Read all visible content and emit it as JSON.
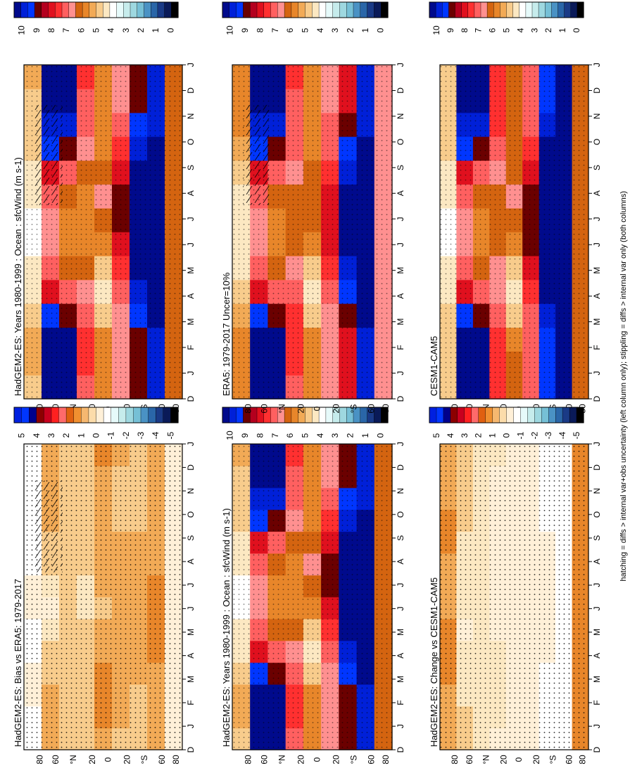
{
  "figure": {
    "footnote": "hatching = diffs > internal var+obs uncertainty (left column only); stippling = diffs > internal var only (both columns)"
  },
  "month_labels": [
    "D",
    "J",
    "F",
    "M",
    "A",
    "M",
    "J",
    "J",
    "A",
    "S",
    "O",
    "N",
    "D",
    "J"
  ],
  "lat_labels": [
    "80",
    "60",
    "°N",
    "20",
    "0",
    "20",
    "°S",
    "60",
    "80"
  ],
  "colorbars": {
    "absolute": {
      "ticks": [
        "10",
        "9",
        "8",
        "7",
        "6",
        "5",
        "4",
        "3",
        "2",
        "1",
        "0"
      ],
      "colors": [
        "#000a8c",
        "#0020d8",
        "#0036ff",
        "#6b0000",
        "#b4001e",
        "#e0101e",
        "#ff3030",
        "#ff6060",
        "#ff9090",
        "#d46410",
        "#e8862a",
        "#f2aa56",
        "#f8cc8c",
        "#fce8c2",
        "#ffffff",
        "#e6fafa",
        "#c6ecec",
        "#9ed8e0",
        "#76c0d6",
        "#4a92c4",
        "#2a66a8",
        "#1a3a86",
        "#0a1a58",
        "#000000"
      ]
    },
    "difference": {
      "ticks": [
        "5",
        "4",
        "3",
        "2",
        "1",
        "0",
        "-1",
        "-2",
        "-3",
        "-4",
        "-5"
      ],
      "colors": [
        "#0020e0",
        "#0036ff",
        "#00008c",
        "#8c0000",
        "#c8001e",
        "#ff2020",
        "#ff6a6a",
        "#e06010",
        "#f09030",
        "#f6b870",
        "#fcdcaa",
        "#fff0d8",
        "#ffffff",
        "#e6fafa",
        "#c6ecec",
        "#9ed8e0",
        "#76c0d6",
        "#4a92c4",
        "#2a66a8",
        "#1a3a86",
        "#0a1a58",
        "#000000"
      ]
    }
  },
  "panels": [
    {
      "title": "HadGEM2-ES: Years 1980-1999 : Ocean : sfcWind (m s-1)",
      "colorbar": "absolute",
      "hatched": true
    },
    {
      "title": "HadGEM2-ES: Years 1980-1999 : Ocean : sfcWind (m s-1)",
      "colorbar": "absolute",
      "hatched": false
    },
    {
      "title": "ERA5: 1979-2017 Uncer=10%",
      "colorbar": "absolute",
      "hatched": true
    },
    {
      "title": "CESM1-CAM5",
      "colorbar": "absolute",
      "hatched": false
    },
    {
      "title": "HadGEM2-ES: Bias vs ERA5: 1979-2017",
      "colorbar": "difference",
      "hatched": true
    },
    {
      "title": "HadGEM2-ES: Change vs CESM1-CAM5",
      "colorbar": "difference",
      "hatched": false
    }
  ],
  "chart_data": [
    {
      "type": "heatmap",
      "title": "HadGEM2-ES: Years 1980-1999 : Ocean : sfcWind (m s-1)",
      "x": [
        "D",
        "J",
        "F",
        "M",
        "A",
        "M",
        "J",
        "J",
        "A",
        "S",
        "O",
        "N",
        "D",
        "J"
      ],
      "y": [
        "80N",
        "60N",
        "40N",
        "20N",
        "0",
        "20S",
        "40S",
        "60S",
        "80S"
      ],
      "values": [
        [
          5.0,
          5.2,
          5.2,
          5.0,
          4.5,
          4.2,
          4.0,
          4.0,
          4.2,
          4.5,
          4.8,
          5.0,
          5.0,
          5.2
        ],
        [
          10.0,
          10.0,
          10.0,
          9.0,
          8.0,
          7.0,
          6.5,
          6.5,
          7.0,
          8.0,
          9.0,
          9.5,
          10.0,
          10.0
        ],
        [
          10.0,
          10.0,
          10.0,
          8.5,
          7.0,
          6.0,
          5.5,
          5.5,
          6.0,
          7.0,
          8.5,
          9.5,
          10.0,
          10.0
        ],
        [
          7.0,
          7.5,
          7.5,
          7.0,
          6.5,
          6.0,
          5.5,
          5.5,
          5.5,
          6.0,
          6.5,
          7.0,
          7.0,
          7.5
        ],
        [
          5.5,
          5.5,
          5.5,
          5.0,
          4.5,
          5.0,
          5.5,
          6.0,
          6.5,
          6.0,
          5.5,
          5.5,
          5.5,
          5.5
        ],
        [
          6.5,
          6.5,
          6.5,
          6.5,
          7.0,
          7.5,
          8.0,
          8.5,
          8.5,
          8.0,
          7.5,
          7.0,
          6.5,
          6.5
        ],
        [
          8.5,
          8.5,
          8.5,
          9.0,
          9.5,
          10.0,
          10.0,
          10.0,
          10.0,
          10.0,
          9.5,
          9.0,
          8.5,
          8.5
        ],
        [
          9.5,
          9.5,
          9.5,
          10.0,
          10.0,
          10.0,
          10.0,
          10.0,
          10.0,
          10.0,
          10.0,
          9.5,
          9.5,
          9.5
        ],
        [
          6.0,
          6.0,
          6.0,
          6.0,
          6.0,
          6.0,
          6.0,
          6.0,
          6.0,
          6.0,
          6.0,
          6.0,
          6.0,
          6.0
        ]
      ]
    },
    {
      "type": "heatmap",
      "title": "HadGEM2-ES: Years 1980-1999 : Ocean : sfcWind (m s-1)",
      "x": [
        "D",
        "J",
        "F",
        "M",
        "A",
        "M",
        "J",
        "J",
        "A",
        "S",
        "O",
        "N",
        "D",
        "J"
      ],
      "y": [
        "80N",
        "60N",
        "40N",
        "20N",
        "0",
        "20S",
        "40S",
        "60S",
        "80S"
      ],
      "values": [
        [
          5.0,
          5.2,
          5.2,
          5.0,
          4.5,
          4.2,
          4.0,
          4.0,
          4.2,
          4.5,
          4.8,
          5.0,
          5.0,
          5.2
        ],
        [
          10.0,
          10.0,
          10.0,
          9.0,
          8.0,
          7.0,
          6.5,
          6.5,
          7.0,
          8.0,
          9.0,
          9.5,
          10.0,
          10.0
        ],
        [
          10.0,
          10.0,
          10.0,
          8.5,
          7.0,
          6.0,
          5.5,
          5.5,
          6.0,
          7.0,
          8.5,
          9.5,
          10.0,
          10.0
        ],
        [
          7.0,
          7.5,
          7.5,
          7.0,
          6.5,
          6.0,
          5.5,
          5.5,
          5.5,
          6.0,
          6.5,
          7.0,
          7.0,
          7.5
        ],
        [
          5.5,
          5.5,
          5.5,
          5.0,
          4.5,
          5.0,
          5.5,
          6.0,
          6.5,
          6.0,
          5.5,
          5.5,
          5.5,
          5.5
        ],
        [
          6.5,
          6.5,
          6.5,
          6.5,
          7.0,
          7.5,
          8.0,
          8.5,
          8.5,
          8.0,
          7.5,
          7.0,
          6.5,
          6.5
        ],
        [
          8.5,
          8.5,
          8.5,
          9.0,
          9.5,
          10.0,
          10.0,
          10.0,
          10.0,
          10.0,
          9.5,
          9.0,
          8.5,
          8.5
        ],
        [
          9.5,
          9.5,
          9.5,
          10.0,
          10.0,
          10.0,
          10.0,
          10.0,
          10.0,
          10.0,
          10.0,
          9.5,
          9.5,
          9.5
        ],
        [
          6.0,
          6.0,
          6.0,
          6.0,
          6.0,
          6.0,
          6.0,
          6.0,
          6.0,
          6.0,
          6.0,
          6.0,
          6.0,
          6.0
        ]
      ]
    },
    {
      "type": "heatmap",
      "title": "ERA5: 1979-2017 Uncer=10%",
      "x": [
        "D",
        "J",
        "F",
        "M",
        "A",
        "M",
        "J",
        "J",
        "A",
        "S",
        "O",
        "N",
        "D",
        "J"
      ],
      "y": [
        "80N",
        "60N",
        "40N",
        "20N",
        "0",
        "20S",
        "40S",
        "60S",
        "80S"
      ],
      "values": [
        [
          5.5,
          5.5,
          5.5,
          5.2,
          4.8,
          4.5,
          4.2,
          4.2,
          4.5,
          4.8,
          5.2,
          5.5,
          5.5,
          5.5
        ],
        [
          10.0,
          10.0,
          10.0,
          9.0,
          8.0,
          7.0,
          6.5,
          6.5,
          7.0,
          8.0,
          9.0,
          9.5,
          10.0,
          10.0
        ],
        [
          10.0,
          10.0,
          10.0,
          8.5,
          7.0,
          6.0,
          5.5,
          5.5,
          6.0,
          7.0,
          8.5,
          9.5,
          10.0,
          10.0
        ],
        [
          7.0,
          7.5,
          7.5,
          7.5,
          7.0,
          6.5,
          6.0,
          6.0,
          6.0,
          6.5,
          7.0,
          7.0,
          7.0,
          7.5
        ],
        [
          5.5,
          5.5,
          5.5,
          5.0,
          4.5,
          5.0,
          5.5,
          6.0,
          6.0,
          6.0,
          5.5,
          5.5,
          5.5,
          5.5
        ],
        [
          6.5,
          6.5,
          6.5,
          6.5,
          7.0,
          7.5,
          8.0,
          8.0,
          8.0,
          7.5,
          7.0,
          7.0,
          6.5,
          6.5
        ],
        [
          8.0,
          8.0,
          8.0,
          8.5,
          9.0,
          9.5,
          10.0,
          10.0,
          10.0,
          9.5,
          9.0,
          8.5,
          8.0,
          8.0
        ],
        [
          9.5,
          9.5,
          9.5,
          10.0,
          10.0,
          10.0,
          10.0,
          10.0,
          10.0,
          10.0,
          10.0,
          9.5,
          9.5,
          9.5
        ],
        [
          6.5,
          6.5,
          6.5,
          6.5,
          6.5,
          6.5,
          6.5,
          6.5,
          6.5,
          6.5,
          6.5,
          6.5,
          6.5,
          6.5
        ]
      ]
    },
    {
      "type": "heatmap",
      "title": "CESM1-CAM5",
      "x": [
        "D",
        "J",
        "F",
        "M",
        "A",
        "M",
        "J",
        "J",
        "A",
        "S",
        "O",
        "N",
        "D",
        "J"
      ],
      "y": [
        "80N",
        "60N",
        "40N",
        "20N",
        "0",
        "20S",
        "40S",
        "60S",
        "80S"
      ],
      "values": [
        [
          5.0,
          5.0,
          5.0,
          4.8,
          4.5,
          4.2,
          4.0,
          4.0,
          4.2,
          4.5,
          4.8,
          5.0,
          5.0,
          5.0
        ],
        [
          10.0,
          10.0,
          10.0,
          9.0,
          8.0,
          7.0,
          6.5,
          6.5,
          7.0,
          8.0,
          9.0,
          9.5,
          10.0,
          10.0
        ],
        [
          10.0,
          10.0,
          10.0,
          8.5,
          7.0,
          6.0,
          5.5,
          5.5,
          6.0,
          7.0,
          8.5,
          9.5,
          10.0,
          10.0
        ],
        [
          7.5,
          7.5,
          7.5,
          7.0,
          6.5,
          6.5,
          6.0,
          6.0,
          6.0,
          6.5,
          7.0,
          7.5,
          7.5,
          7.5
        ],
        [
          6.0,
          6.0,
          5.5,
          5.0,
          4.5,
          5.0,
          5.5,
          6.0,
          6.5,
          6.0,
          6.0,
          6.0,
          6.0,
          6.0
        ],
        [
          7.0,
          7.0,
          7.0,
          7.0,
          7.5,
          8.0,
          8.5,
          8.5,
          8.5,
          8.0,
          7.5,
          7.0,
          7.0,
          7.0
        ],
        [
          9.0,
          9.0,
          9.0,
          9.5,
          10.0,
          10.0,
          10.0,
          10.0,
          10.0,
          10.0,
          10.0,
          9.5,
          9.0,
          9.0
        ],
        [
          10.0,
          10.0,
          10.0,
          10.0,
          10.0,
          10.0,
          10.0,
          10.0,
          10.0,
          10.0,
          10.0,
          10.0,
          10.0,
          10.0
        ],
        [
          6.0,
          6.0,
          6.0,
          6.0,
          6.0,
          6.0,
          6.0,
          6.0,
          6.0,
          6.0,
          6.0,
          6.0,
          6.0,
          6.0
        ]
      ]
    },
    {
      "type": "heatmap",
      "title": "HadGEM2-ES: Bias vs ERA5: 1979-2017",
      "x": [
        "D",
        "J",
        "F",
        "M",
        "A",
        "M",
        "J",
        "J",
        "A",
        "S",
        "O",
        "N",
        "D",
        "J"
      ],
      "y": [
        "80N",
        "60N",
        "40N",
        "20N",
        "0",
        "20S",
        "40S",
        "60S",
        "80S"
      ],
      "values": [
        [
          -0.3,
          -0.3,
          -0.2,
          -0.2,
          -0.3,
          -0.3,
          -0.2,
          -0.2,
          -0.3,
          -0.3,
          -0.4,
          -0.5,
          -0.3,
          -0.3
        ],
        [
          0.3,
          0.4,
          0.3,
          0.2,
          0.1,
          0.0,
          -0.1,
          0.0,
          0.1,
          0.2,
          0.3,
          0.3,
          0.3,
          0.4
        ],
        [
          0.2,
          0.2,
          0.1,
          0.1,
          0.1,
          0.2,
          0.2,
          0.1,
          0.1,
          0.1,
          0.2,
          0.2,
          0.2,
          0.2
        ],
        [
          0.1,
          0.1,
          0.1,
          0.2,
          0.2,
          0.1,
          0.0,
          0.0,
          0.1,
          0.1,
          0.1,
          0.1,
          0.1,
          0.1
        ],
        [
          0.4,
          0.6,
          0.6,
          0.5,
          0.4,
          0.3,
          0.2,
          0.3,
          0.3,
          0.4,
          0.4,
          0.4,
          0.4,
          0.6
        ],
        [
          0.2,
          0.3,
          0.3,
          0.3,
          0.3,
          0.4,
          0.4,
          0.3,
          0.3,
          0.3,
          0.2,
          0.2,
          0.2,
          0.3
        ],
        [
          0.1,
          0.1,
          0.2,
          0.3,
          0.3,
          0.4,
          0.4,
          0.4,
          0.3,
          0.3,
          0.2,
          0.2,
          0.1,
          0.1
        ],
        [
          0.3,
          0.3,
          0.4,
          0.4,
          0.5,
          0.5,
          0.5,
          0.5,
          0.4,
          0.4,
          0.3,
          0.3,
          0.3,
          0.3
        ],
        [
          -0.2,
          -0.2,
          -0.2,
          -0.2,
          -0.2,
          -0.2,
          -0.2,
          -0.2,
          -0.2,
          -0.2,
          -0.2,
          -0.2,
          -0.2,
          -0.2
        ]
      ]
    },
    {
      "type": "heatmap",
      "title": "HadGEM2-ES: Change vs CESM1-CAM5",
      "x": [
        "D",
        "J",
        "F",
        "M",
        "A",
        "M",
        "J",
        "J",
        "A",
        "S",
        "O",
        "N",
        "D",
        "J"
      ],
      "y": [
        "80N",
        "60N",
        "40N",
        "20N",
        "0",
        "20S",
        "40S",
        "60S",
        "80S"
      ],
      "values": [
        [
          0.4,
          0.4,
          0.4,
          0.5,
          0.5,
          0.5,
          0.4,
          0.4,
          0.4,
          0.5,
          0.5,
          0.4,
          0.4,
          0.4
        ],
        [
          0.1,
          0.1,
          0.0,
          0.0,
          0.0,
          -0.1,
          0.0,
          0.0,
          0.0,
          0.0,
          0.1,
          0.1,
          0.1,
          0.1
        ],
        [
          0.0,
          0.0,
          0.0,
          0.0,
          0.0,
          0.0,
          0.0,
          0.0,
          0.0,
          0.0,
          0.0,
          0.0,
          0.0,
          0.0
        ],
        [
          -0.1,
          0.0,
          0.0,
          0.0,
          0.0,
          -0.1,
          -0.1,
          -0.1,
          -0.1,
          -0.1,
          -0.1,
          -0.1,
          -0.1,
          0.0
        ],
        [
          -0.2,
          -0.2,
          -0.2,
          -0.2,
          -0.1,
          -0.1,
          -0.1,
          -0.1,
          -0.1,
          -0.1,
          -0.2,
          -0.2,
          -0.2,
          -0.2
        ],
        [
          -0.2,
          -0.2,
          -0.2,
          -0.2,
          -0.2,
          -0.2,
          -0.2,
          -0.1,
          -0.1,
          -0.1,
          -0.2,
          -0.2,
          -0.2,
          -0.2
        ],
        [
          -0.3,
          -0.3,
          -0.3,
          -0.3,
          -0.2,
          -0.2,
          -0.2,
          -0.2,
          -0.2,
          -0.2,
          -0.3,
          -0.3,
          -0.3,
          -0.3
        ],
        [
          -0.4,
          -0.4,
          -0.3,
          -0.3,
          -0.3,
          -0.3,
          -0.3,
          -0.3,
          -0.3,
          -0.3,
          -0.4,
          -0.4,
          -0.4,
          -0.4
        ],
        [
          0.6,
          0.6,
          0.6,
          0.6,
          0.6,
          0.6,
          0.6,
          0.6,
          0.6,
          0.6,
          0.6,
          0.6,
          0.6,
          0.6
        ]
      ]
    }
  ]
}
